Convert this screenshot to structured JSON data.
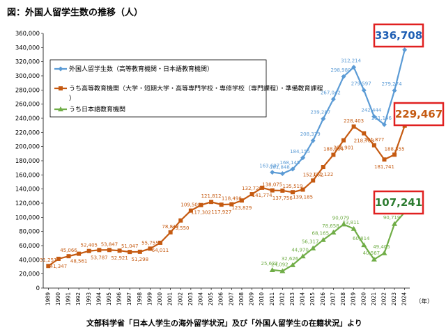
{
  "title": "図：外国人留学生数の推移（人）",
  "source": "文部科学省「日本人学生の海外留学状況」及び「外国人留学生の在籍状況」より",
  "chart_data": {
    "type": "line",
    "title": "図：外国人留学生数の推移（人）",
    "xlabel": "（年）",
    "ylabel": "",
    "ylim": [
      0,
      360000
    ],
    "y_ticks": [
      "0",
      "20,000",
      "40,000",
      "60,000",
      "80,000",
      "100,000",
      "120,000",
      "140,000",
      "160,000",
      "180,000",
      "200,000",
      "220,000",
      "240,000",
      "260,000",
      "280,000",
      "300,000",
      "320,000",
      "340,000",
      "360,000"
    ],
    "grid": false,
    "legend_position": "top-left",
    "x": [
      "1989",
      "1990",
      "1991",
      "1992",
      "1993",
      "1994",
      "1995",
      "1996",
      "1997",
      "1998",
      "1999",
      "2000",
      "2001",
      "2002",
      "2003",
      "2004",
      "2005",
      "2006",
      "2007",
      "2008",
      "2009",
      "2010",
      "2011",
      "2012",
      "2013",
      "2014",
      "2015",
      "2016",
      "2017",
      "2018",
      "2019",
      "2020",
      "2021",
      "2022",
      "2023",
      "2024"
    ],
    "series": [
      {
        "name": "外国人留学生数（高等教育機関・日本語教育機関）",
        "color": "#5b9bd5",
        "values": [
          null,
          null,
          null,
          null,
          null,
          null,
          null,
          null,
          null,
          null,
          null,
          null,
          null,
          null,
          null,
          null,
          null,
          null,
          null,
          null,
          null,
          null,
          163697,
          161848,
          168145,
          184155,
          208379,
          239287,
          267042,
          298980,
          312214,
          279597,
          242444,
          231146,
          279274,
          336708
        ],
        "labels": [
          null,
          null,
          null,
          null,
          null,
          null,
          null,
          null,
          null,
          null,
          null,
          null,
          null,
          null,
          null,
          null,
          null,
          null,
          null,
          null,
          null,
          null,
          "163,697",
          "161,848",
          "168,145",
          "184,155",
          "208,379",
          "239,287",
          "267,042",
          "298,980",
          "312,214",
          "279,597",
          "242,444",
          "231,146",
          "279,274",
          "336,708"
        ]
      },
      {
        "name": "うち高等教育機関（大学・短期大学・高等専門学校・専修学校（専門課程）・準備教育課程）",
        "color": "#c55a11",
        "values": [
          31251,
          41347,
          45066,
          48561,
          52405,
          53787,
          53847,
          52921,
          51047,
          51298,
          55755,
          64011,
          78812,
          95550,
          109508,
          117302,
          121812,
          117927,
          118498,
          123829,
          132720,
          141774,
          138075,
          137756,
          135519,
          139185,
          152062,
          171122,
          188384,
          208901,
          228403,
          218783,
          201877,
          181741,
          188555,
          229467
        ],
        "labels": [
          "31,251",
          "41,347",
          "45,066",
          "48,561",
          "52,405",
          "53,787",
          "53,847",
          "52,921",
          "51,047",
          "51,298",
          "55,755",
          "64,011",
          "78,812",
          "95,550",
          "109,508",
          "117,302",
          "121,812",
          "117,927",
          "118,498",
          "123,829",
          "132,720",
          "141,774",
          "138,075",
          "137,756",
          "135,519",
          "139,185",
          "152,062",
          "171,122",
          "188,384",
          "208,901",
          "228,403",
          "218,783",
          "201,877",
          "181,741",
          "188,555",
          "229,467"
        ]
      },
      {
        "name": "うち日本語教育機関",
        "color": "#70ad47",
        "values": [
          null,
          null,
          null,
          null,
          null,
          null,
          null,
          null,
          null,
          null,
          null,
          null,
          null,
          null,
          null,
          null,
          null,
          null,
          null,
          null,
          null,
          null,
          25622,
          24092,
          32626,
          44970,
          56317,
          68165,
          78658,
          90079,
          83811,
          60814,
          40567,
          49405,
          90719,
          107241
        ],
        "labels": [
          null,
          null,
          null,
          null,
          null,
          null,
          null,
          null,
          null,
          null,
          null,
          null,
          null,
          null,
          null,
          null,
          null,
          null,
          null,
          null,
          null,
          null,
          "25,622",
          "24,092",
          "32,626",
          "44,970",
          "56,317",
          "68,165",
          "78,658",
          "90,079",
          "83,811",
          "60,814",
          "40,567",
          "49,405",
          "90,719",
          "107,241"
        ]
      }
    ],
    "callouts": [
      {
        "series": 0,
        "text": "336,708",
        "color": "#1f5fb4"
      },
      {
        "series": 1,
        "text": "229,467",
        "color": "#c55a11"
      },
      {
        "series": 2,
        "text": "107,241",
        "color": "#2e7d32"
      }
    ]
  }
}
